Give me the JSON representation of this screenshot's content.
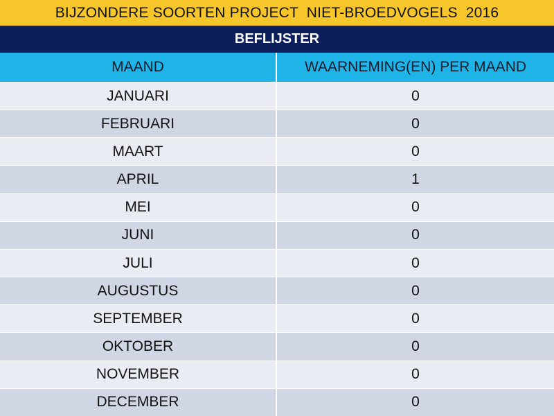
{
  "title": "BIJZONDERE SOORTEN PROJECT  NIET-BROEDVOGELS  2016",
  "species": "BEFLIJSTER",
  "columns": [
    "MAAND",
    "WAARNEMING(EN) PER MAAND"
  ],
  "rows": [
    {
      "month": "JANUARI",
      "count": "0"
    },
    {
      "month": "FEBRUARI",
      "count": "0"
    },
    {
      "month": "MAART",
      "count": "0"
    },
    {
      "month": "APRIL",
      "count": "1"
    },
    {
      "month": "MEI",
      "count": "0"
    },
    {
      "month": "JUNI",
      "count": "0"
    },
    {
      "month": "JULI",
      "count": "0"
    },
    {
      "month": "AUGUSTUS",
      "count": "0"
    },
    {
      "month": "SEPTEMBER",
      "count": "0"
    },
    {
      "month": "OKTOBER",
      "count": "0"
    },
    {
      "month": "NOVEMBER",
      "count": "0"
    },
    {
      "month": "DECEMBER",
      "count": "0"
    }
  ],
  "colors": {
    "title_bg": "#f7c62b",
    "species_bg": "#0c1f5c",
    "header_bg": "#1fb4e8",
    "row_light": "#e9ecf3",
    "row_dark": "#d0d6e4"
  }
}
